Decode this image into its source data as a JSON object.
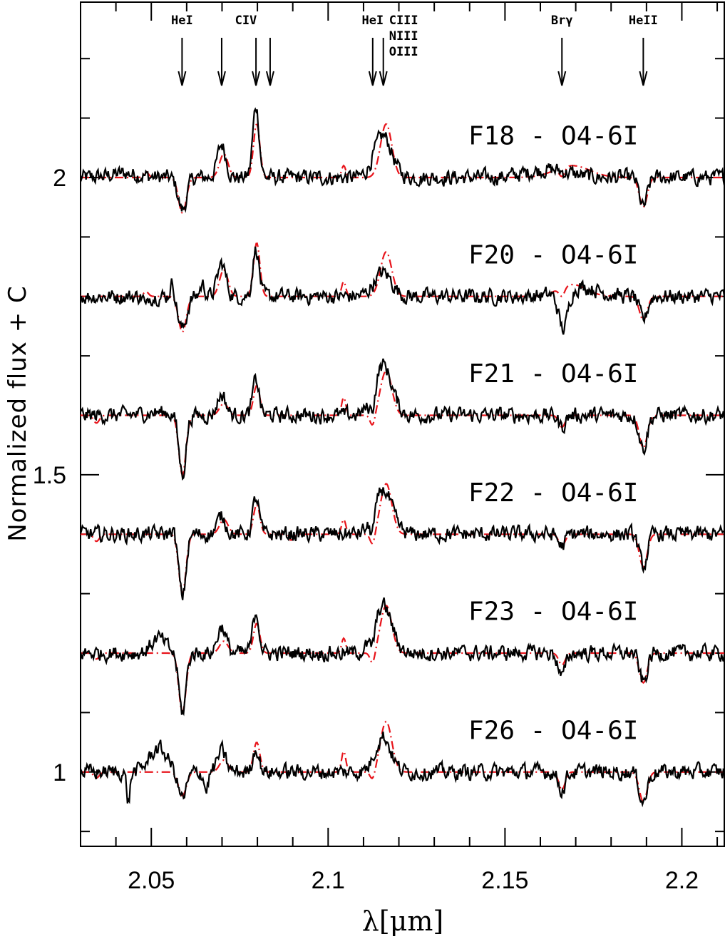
{
  "chart_data": {
    "type": "line",
    "title": "",
    "xlabel": "λ[μm]",
    "ylabel": "Normalized flux + C",
    "xlim": [
      2.03,
      2.212
    ],
    "ylim": [
      0.875,
      2.295
    ],
    "x_ticks": [
      2.05,
      2.1,
      2.15,
      2.2
    ],
    "x_tick_labels": [
      "2.05",
      "2.1",
      "2.15",
      "2.2"
    ],
    "y_ticks": [
      1,
      1.5,
      2
    ],
    "y_tick_labels": [
      "1",
      "1.5",
      "2"
    ],
    "grid": false,
    "colors": {
      "observed": "#000000",
      "model": "#e8141b"
    },
    "line_markers": [
      {
        "label": "HeI",
        "x": [
          2.0587
        ]
      },
      {
        "label": "CIV",
        "x": [
          2.0699,
          2.0796,
          2.0836
        ]
      },
      {
        "label": "HeI",
        "x": [
          2.1126
        ]
      },
      {
        "label": "CIII\nNIII\nOIII",
        "x": [
          2.1156
        ]
      },
      {
        "label": "Brγ",
        "x": [
          2.1661
        ]
      },
      {
        "label": "HeII",
        "x": [
          2.1891
        ]
      }
    ],
    "spectra": [
      {
        "label": "F18 - O4-6I",
        "offset": 2.0,
        "obs_features": [
          [
            2.0588,
            -0.055,
            0.0012
          ],
          [
            2.0699,
            0.055,
            0.0012
          ],
          [
            2.0796,
            0.12,
            0.0009
          ],
          [
            2.1155,
            0.07,
            0.0025
          ],
          [
            2.162,
            0.013,
            0.006
          ],
          [
            2.1891,
            -0.05,
            0.0011
          ],
          [
            2.0425,
            0.007,
            0.004
          ]
        ],
        "model_features": [
          [
            2.0588,
            -0.06,
            0.0011
          ],
          [
            2.0705,
            0.04,
            0.0012
          ],
          [
            2.0798,
            0.09,
            0.0009
          ],
          [
            2.1044,
            0.02,
            0.0006
          ],
          [
            2.1164,
            0.09,
            0.0016
          ],
          [
            2.1661,
            -0.015,
            0.0008
          ],
          [
            2.169,
            0.02,
            0.005
          ],
          [
            2.1891,
            -0.05,
            0.0011
          ],
          [
            2.0485,
            0.01,
            0.0007
          ]
        ]
      },
      {
        "label": "F20 - O4-6I",
        "offset": 1.8,
        "obs_features": [
          [
            2.0588,
            -0.055,
            0.0012
          ],
          [
            2.0699,
            0.055,
            0.0012
          ],
          [
            2.0796,
            0.08,
            0.0009
          ],
          [
            2.1155,
            0.04,
            0.0025
          ],
          [
            2.1665,
            -0.065,
            0.0013
          ],
          [
            2.1715,
            0.016,
            0.005
          ],
          [
            2.1891,
            -0.04,
            0.0011
          ],
          [
            2.0485,
            -0.02,
            0.0004
          ],
          [
            2.056,
            0.025,
            0.0006
          ],
          [
            2.0645,
            0.02,
            0.0007
          ]
        ],
        "model_features": [
          [
            2.0588,
            -0.06,
            0.0011
          ],
          [
            2.0705,
            0.045,
            0.0012
          ],
          [
            2.0798,
            0.09,
            0.0009
          ],
          [
            2.1044,
            0.025,
            0.0006
          ],
          [
            2.1164,
            0.075,
            0.0016
          ],
          [
            2.1661,
            -0.015,
            0.0008
          ],
          [
            2.169,
            0.02,
            0.004
          ],
          [
            2.1891,
            -0.04,
            0.0011
          ],
          [
            2.0485,
            0.008,
            0.0007
          ]
        ]
      },
      {
        "label": "F21 - O4-6I",
        "offset": 1.6,
        "obs_features": [
          [
            2.0588,
            -0.1,
            0.001
          ],
          [
            2.0699,
            0.035,
            0.0012
          ],
          [
            2.0796,
            0.06,
            0.0009
          ],
          [
            2.1155,
            0.085,
            0.0025
          ],
          [
            2.1126,
            -0.03,
            0.0008
          ],
          [
            2.1661,
            -0.02,
            0.0009
          ],
          [
            2.1891,
            -0.055,
            0.0011
          ],
          [
            2.052,
            0.005,
            0.004
          ]
        ],
        "model_features": [
          [
            2.0588,
            -0.1,
            0.001
          ],
          [
            2.0705,
            0.02,
            0.0012
          ],
          [
            2.0798,
            0.05,
            0.0009
          ],
          [
            2.1044,
            0.03,
            0.0006
          ],
          [
            2.1164,
            0.075,
            0.0016
          ],
          [
            2.1126,
            -0.02,
            0.0007
          ],
          [
            2.1661,
            -0.02,
            0.0009
          ],
          [
            2.1891,
            -0.055,
            0.0011
          ],
          [
            2.0345,
            -0.013,
            0.0008
          ]
        ]
      },
      {
        "label": "F22 - O4-6I",
        "offset": 1.4,
        "obs_features": [
          [
            2.0588,
            -0.105,
            0.001
          ],
          [
            2.0699,
            0.03,
            0.0012
          ],
          [
            2.0796,
            0.06,
            0.0009
          ],
          [
            2.1155,
            0.075,
            0.0025
          ],
          [
            2.1126,
            -0.03,
            0.0008
          ],
          [
            2.1661,
            -0.02,
            0.001
          ],
          [
            2.1891,
            -0.055,
            0.0011
          ],
          [
            2.056,
            0.01,
            0.0005
          ]
        ],
        "model_features": [
          [
            2.0588,
            -0.1,
            0.001
          ],
          [
            2.0705,
            0.025,
            0.0012
          ],
          [
            2.0798,
            0.05,
            0.0009
          ],
          [
            2.1044,
            0.025,
            0.0006
          ],
          [
            2.1164,
            0.085,
            0.0016
          ],
          [
            2.1126,
            -0.02,
            0.0007
          ],
          [
            2.1661,
            -0.02,
            0.0009
          ],
          [
            2.1891,
            -0.055,
            0.0011
          ],
          [
            2.0345,
            -0.012,
            0.0008
          ],
          [
            2.0895,
            -0.01,
            0.0007
          ]
        ]
      },
      {
        "label": "F23 - O4-6I",
        "offset": 1.2,
        "obs_features": [
          [
            2.0588,
            -0.1,
            0.001
          ],
          [
            2.0699,
            0.045,
            0.0012
          ],
          [
            2.0796,
            0.07,
            0.0009
          ],
          [
            2.1155,
            0.08,
            0.0025
          ],
          [
            2.1126,
            -0.025,
            0.0008
          ],
          [
            2.1661,
            -0.04,
            0.001
          ],
          [
            2.1891,
            -0.05,
            0.0011
          ],
          [
            2.052,
            0.025,
            0.002
          ]
        ],
        "model_features": [
          [
            2.0588,
            -0.1,
            0.001
          ],
          [
            2.0705,
            0.02,
            0.0012
          ],
          [
            2.0798,
            0.05,
            0.0009
          ],
          [
            2.1044,
            0.025,
            0.0006
          ],
          [
            2.1164,
            0.08,
            0.0016
          ],
          [
            2.1126,
            -0.02,
            0.0007
          ],
          [
            2.1661,
            -0.02,
            0.0009
          ],
          [
            2.1891,
            -0.05,
            0.0011
          ],
          [
            2.0345,
            -0.01,
            0.0008
          ]
        ]
      },
      {
        "label": "F26 - O4-6I",
        "offset": 1.0,
        "obs_features": [
          [
            2.0588,
            -0.045,
            0.0012
          ],
          [
            2.0699,
            0.035,
            0.0012
          ],
          [
            2.0796,
            0.04,
            0.0009
          ],
          [
            2.1155,
            0.06,
            0.0022
          ],
          [
            2.1891,
            -0.05,
            0.0011
          ],
          [
            2.0435,
            -0.05,
            0.0005
          ],
          [
            2.0655,
            -0.03,
            0.0006
          ],
          [
            2.052,
            0.04,
            0.0025
          ],
          [
            2.1661,
            -0.03,
            0.001
          ]
        ],
        "model_features": [
          [
            2.0588,
            -0.04,
            0.0011
          ],
          [
            2.0705,
            0.02,
            0.0012
          ],
          [
            2.0798,
            0.05,
            0.0009
          ],
          [
            2.1044,
            0.035,
            0.0006
          ],
          [
            2.1164,
            0.085,
            0.0016
          ],
          [
            2.1126,
            -0.015,
            0.0007
          ],
          [
            2.1661,
            -0.03,
            0.0009
          ],
          [
            2.1891,
            -0.05,
            0.0011
          ],
          [
            2.0345,
            -0.01,
            0.0008
          ]
        ]
      }
    ]
  }
}
